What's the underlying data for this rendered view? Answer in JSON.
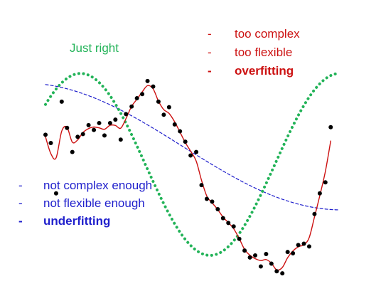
{
  "colors": {
    "over": "#cc1111",
    "under": "#1f1fcc",
    "right": "#22b358",
    "points": "#000000"
  },
  "labels": {
    "just_right": "Just right",
    "over": [
      {
        "dash": "-",
        "text": "too complex"
      },
      {
        "dash": "-",
        "text": "too flexible"
      },
      {
        "dash": "-",
        "text": "overfitting"
      }
    ],
    "under": [
      {
        "dash": "-",
        "text": "not complex enough"
      },
      {
        "dash": "-",
        "text": "not flexible enough"
      },
      {
        "dash": "-",
        "text": "underfitting"
      }
    ]
  },
  "chart_data": {
    "type": "scatter",
    "title": "",
    "xlabel": "",
    "ylabel": "",
    "xlim": [
      0,
      10
    ],
    "ylim": [
      -1.6,
      1.6
    ],
    "points": [
      [
        0.0,
        0.45
      ],
      [
        0.17,
        0.33
      ],
      [
        0.34,
        -0.4
      ],
      [
        0.52,
        0.93
      ],
      [
        0.69,
        0.55
      ],
      [
        0.86,
        0.2
      ],
      [
        1.03,
        0.42
      ],
      [
        1.2,
        0.46
      ],
      [
        1.38,
        0.59
      ],
      [
        1.55,
        0.52
      ],
      [
        1.72,
        0.62
      ],
      [
        1.89,
        0.44
      ],
      [
        2.07,
        0.62
      ],
      [
        2.24,
        0.67
      ],
      [
        2.41,
        0.38
      ],
      [
        2.58,
        0.75
      ],
      [
        2.76,
        0.86
      ],
      [
        2.93,
        0.98
      ],
      [
        3.1,
        1.04
      ],
      [
        3.27,
        1.23
      ],
      [
        3.45,
        1.15
      ],
      [
        3.62,
        0.93
      ],
      [
        3.79,
        0.74
      ],
      [
        3.96,
        0.85
      ],
      [
        4.14,
        0.6
      ],
      [
        4.31,
        0.5
      ],
      [
        4.48,
        0.35
      ],
      [
        4.65,
        0.15
      ],
      [
        4.83,
        0.2
      ],
      [
        5.0,
        -0.28
      ],
      [
        5.17,
        -0.48
      ],
      [
        5.34,
        -0.52
      ],
      [
        5.52,
        -0.63
      ],
      [
        5.69,
        -0.76
      ],
      [
        5.86,
        -0.83
      ],
      [
        6.03,
        -0.88
      ],
      [
        6.21,
        -1.06
      ],
      [
        6.38,
        -1.23
      ],
      [
        6.55,
        -1.33
      ],
      [
        6.72,
        -1.3
      ],
      [
        6.9,
        -1.46
      ],
      [
        7.07,
        -1.28
      ],
      [
        7.24,
        -1.42
      ],
      [
        7.41,
        -1.53
      ],
      [
        7.59,
        -1.56
      ],
      [
        7.76,
        -1.25
      ],
      [
        7.93,
        -1.27
      ],
      [
        8.1,
        -1.15
      ],
      [
        8.28,
        -1.13
      ],
      [
        8.45,
        -1.17
      ],
      [
        8.62,
        -0.7
      ],
      [
        8.79,
        -0.4
      ],
      [
        8.97,
        -0.24
      ],
      [
        9.14,
        0.56
      ]
    ],
    "series": [
      {
        "style": "solid",
        "color": "#cc1111"
      },
      {
        "style": "dashed",
        "color": "#1f1fcc"
      },
      {
        "style": "dotted",
        "color": "#22b358"
      }
    ]
  }
}
